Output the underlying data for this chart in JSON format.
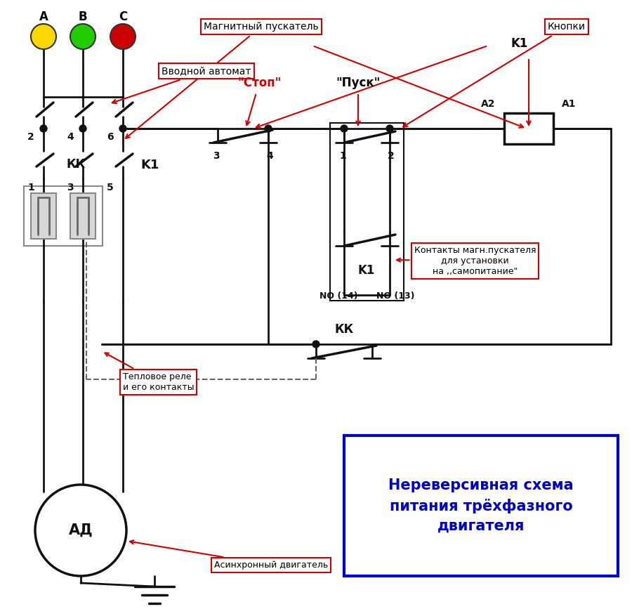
{
  "bg_color": "#ffffff",
  "phases": [
    "A",
    "B",
    "C"
  ],
  "phase_colors": [
    "#FFD700",
    "#22CC00",
    "#CC0000"
  ],
  "lc": "#111111",
  "ann_color": "#CC0000",
  "blue_color": "#0000CC",
  "stop_color": "#CC0000",
  "main_title_text": "Нереверсивная схема\nпитания трёхфазного\nдвигателя",
  "ann_mag_pusk": "Магнитный пускатель",
  "ann_vvod": "Вводной автомат",
  "ann_knopki": "Кнопки",
  "ann_kontakty": "Контакты магн.пускателя\nдля установки\nна ,,самопитание\"",
  "ann_teplo": "Тепловое реле\nи его контакты",
  "ann_async": "Асинхронный двигатель",
  "lw": 2.0,
  "lw_thick": 2.5
}
